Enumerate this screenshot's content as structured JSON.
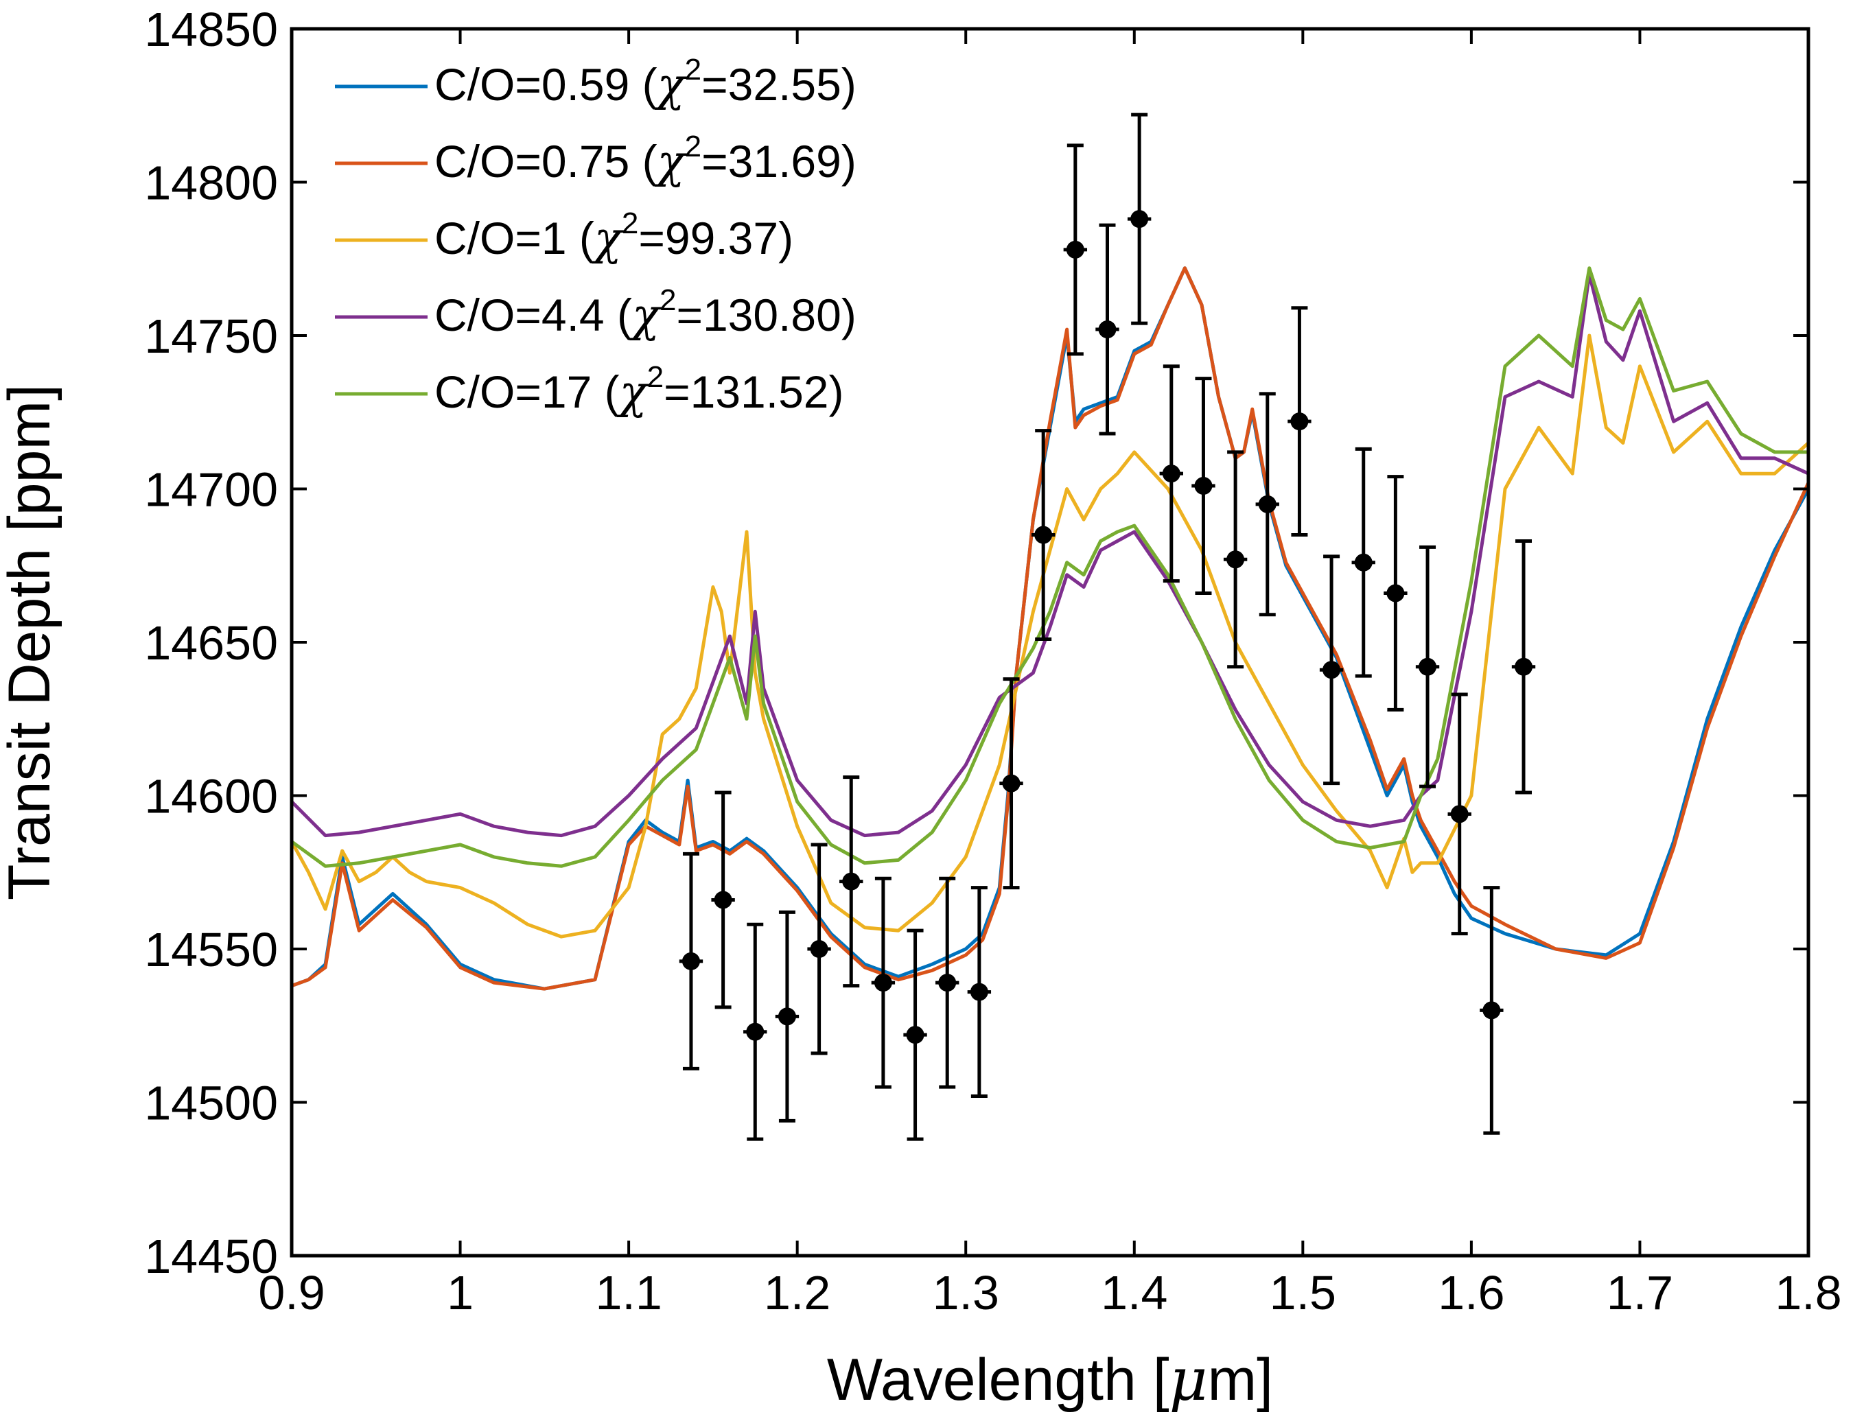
{
  "chart_data": {
    "type": "line",
    "title": "",
    "xlabel_text": "Wavelength [",
    "xlabel_mu": "μ",
    "xlabel_unit": "m]",
    "ylabel": "Transit Depth [ppm]",
    "xlim": [
      0.9,
      1.8
    ],
    "ylim": [
      14450,
      14850
    ],
    "xticks": [
      0.9,
      1,
      1.1,
      1.2,
      1.3,
      1.4,
      1.5,
      1.6,
      1.7,
      1.8
    ],
    "xtick_labels": [
      "0.9",
      "1",
      "1.1",
      "1.2",
      "1.3",
      "1.4",
      "1.5",
      "1.6",
      "1.7",
      "1.8"
    ],
    "yticks": [
      14450,
      14500,
      14550,
      14600,
      14650,
      14700,
      14750,
      14800,
      14850
    ],
    "ytick_labels": [
      "14450",
      "14500",
      "14550",
      "14600",
      "14650",
      "14700",
      "14750",
      "14800",
      "14850"
    ],
    "legend_position": "top-left",
    "series": [
      {
        "name": "C/O=0.59 (χ2=32.55)",
        "legend_prefix": "C/O=0.59 (",
        "chi_symbol": "χ",
        "chi_exponent": "2",
        "legend_suffix": "=32.55)",
        "color": "#0072BD",
        "x": [
          0.9,
          0.91,
          0.92,
          0.93,
          0.94,
          0.96,
          0.98,
          1.0,
          1.02,
          1.05,
          1.08,
          1.1,
          1.11,
          1.12,
          1.13,
          1.135,
          1.14,
          1.15,
          1.16,
          1.17,
          1.18,
          1.2,
          1.22,
          1.24,
          1.26,
          1.28,
          1.3,
          1.31,
          1.32,
          1.325,
          1.33,
          1.34,
          1.35,
          1.36,
          1.365,
          1.37,
          1.38,
          1.39,
          1.4,
          1.41,
          1.42,
          1.43,
          1.44,
          1.45,
          1.46,
          1.465,
          1.47,
          1.48,
          1.49,
          1.5,
          1.52,
          1.54,
          1.55,
          1.56,
          1.565,
          1.57,
          1.58,
          1.59,
          1.6,
          1.62,
          1.65,
          1.68,
          1.7,
          1.72,
          1.74,
          1.76,
          1.78,
          1.8
        ],
        "y": [
          14538,
          14540,
          14545,
          14580,
          14558,
          14568,
          14558,
          14545,
          14540,
          14537,
          14540,
          14585,
          14592,
          14588,
          14585,
          14605,
          14583,
          14585,
          14582,
          14586,
          14582,
          14570,
          14555,
          14545,
          14541,
          14545,
          14550,
          14555,
          14570,
          14600,
          14640,
          14690,
          14720,
          14750,
          14722,
          14726,
          14728,
          14730,
          14745,
          14748,
          14760,
          14772,
          14760,
          14730,
          14710,
          14712,
          14725,
          14695,
          14675,
          14665,
          14645,
          14615,
          14600,
          14610,
          14598,
          14590,
          14580,
          14568,
          14560,
          14555,
          14550,
          14548,
          14555,
          14585,
          14625,
          14655,
          14680,
          14700
        ]
      },
      {
        "name": "C/O=0.75 (χ2=31.69)",
        "legend_prefix": "C/O=0.75 (",
        "chi_symbol": "χ",
        "chi_exponent": "2",
        "legend_suffix": "=31.69)",
        "color": "#D95319",
        "x": [
          0.9,
          0.91,
          0.92,
          0.93,
          0.94,
          0.96,
          0.98,
          1.0,
          1.02,
          1.05,
          1.08,
          1.1,
          1.11,
          1.12,
          1.13,
          1.135,
          1.14,
          1.15,
          1.16,
          1.17,
          1.18,
          1.2,
          1.22,
          1.24,
          1.26,
          1.28,
          1.3,
          1.31,
          1.32,
          1.325,
          1.33,
          1.34,
          1.35,
          1.36,
          1.365,
          1.37,
          1.38,
          1.39,
          1.4,
          1.41,
          1.42,
          1.43,
          1.44,
          1.45,
          1.46,
          1.465,
          1.47,
          1.48,
          1.49,
          1.5,
          1.52,
          1.54,
          1.55,
          1.56,
          1.565,
          1.57,
          1.58,
          1.59,
          1.6,
          1.62,
          1.65,
          1.68,
          1.7,
          1.72,
          1.74,
          1.76,
          1.78,
          1.8
        ],
        "y": [
          14538,
          14540,
          14544,
          14578,
          14556,
          14566,
          14557,
          14544,
          14539,
          14537,
          14540,
          14584,
          14590,
          14587,
          14584,
          14603,
          14582,
          14584,
          14581,
          14585,
          14581,
          14569,
          14554,
          14544,
          14540,
          14543,
          14548,
          14553,
          14568,
          14598,
          14640,
          14690,
          14722,
          14752,
          14720,
          14724,
          14727,
          14729,
          14744,
          14747,
          14760,
          14772,
          14760,
          14730,
          14710,
          14712,
          14726,
          14696,
          14676,
          14666,
          14646,
          14618,
          14602,
          14612,
          14600,
          14592,
          14582,
          14572,
          14564,
          14558,
          14550,
          14547,
          14552,
          14583,
          14622,
          14652,
          14678,
          14702
        ]
      },
      {
        "name": "C/O=1 (χ2=99.37)",
        "legend_prefix": "C/O=1 (",
        "chi_symbol": "χ",
        "chi_exponent": "2",
        "legend_suffix": "=99.37)",
        "color": "#EDB120",
        "x": [
          0.9,
          0.91,
          0.92,
          0.93,
          0.94,
          0.95,
          0.96,
          0.97,
          0.98,
          1.0,
          1.02,
          1.04,
          1.06,
          1.08,
          1.1,
          1.11,
          1.12,
          1.13,
          1.14,
          1.15,
          1.155,
          1.16,
          1.17,
          1.175,
          1.18,
          1.2,
          1.22,
          1.24,
          1.26,
          1.28,
          1.3,
          1.32,
          1.34,
          1.35,
          1.36,
          1.37,
          1.38,
          1.39,
          1.4,
          1.42,
          1.44,
          1.46,
          1.48,
          1.5,
          1.52,
          1.54,
          1.55,
          1.56,
          1.565,
          1.57,
          1.58,
          1.6,
          1.62,
          1.64,
          1.66,
          1.67,
          1.68,
          1.69,
          1.7,
          1.72,
          1.74,
          1.76,
          1.78,
          1.8
        ],
        "y": [
          14585,
          14575,
          14563,
          14582,
          14572,
          14575,
          14580,
          14575,
          14572,
          14570,
          14565,
          14558,
          14554,
          14556,
          14570,
          14590,
          14620,
          14625,
          14635,
          14668,
          14660,
          14640,
          14686,
          14640,
          14625,
          14590,
          14565,
          14557,
          14556,
          14565,
          14580,
          14610,
          14660,
          14680,
          14700,
          14690,
          14700,
          14705,
          14712,
          14700,
          14680,
          14650,
          14630,
          14610,
          14595,
          14582,
          14570,
          14586,
          14575,
          14578,
          14578,
          14600,
          14700,
          14720,
          14705,
          14750,
          14720,
          14715,
          14740,
          14712,
          14722,
          14705,
          14705,
          14715
        ]
      },
      {
        "name": "C/O=4.4 (χ2=130.80)",
        "legend_prefix": "C/O=4.4 (",
        "chi_symbol": "χ",
        "chi_exponent": "2",
        "legend_suffix": "=130.80)",
        "color": "#7E2F8E",
        "x": [
          0.9,
          0.92,
          0.94,
          0.96,
          0.98,
          1.0,
          1.02,
          1.04,
          1.06,
          1.08,
          1.1,
          1.12,
          1.14,
          1.16,
          1.17,
          1.175,
          1.18,
          1.2,
          1.22,
          1.24,
          1.26,
          1.28,
          1.3,
          1.32,
          1.34,
          1.35,
          1.36,
          1.37,
          1.38,
          1.39,
          1.4,
          1.42,
          1.44,
          1.46,
          1.48,
          1.5,
          1.52,
          1.54,
          1.56,
          1.57,
          1.58,
          1.6,
          1.62,
          1.64,
          1.66,
          1.67,
          1.68,
          1.69,
          1.7,
          1.72,
          1.74,
          1.76,
          1.78,
          1.8
        ],
        "y": [
          14598,
          14587,
          14588,
          14590,
          14592,
          14594,
          14590,
          14588,
          14587,
          14590,
          14600,
          14612,
          14622,
          14652,
          14630,
          14660,
          14635,
          14605,
          14592,
          14587,
          14588,
          14595,
          14610,
          14632,
          14640,
          14655,
          14672,
          14668,
          14680,
          14683,
          14686,
          14670,
          14650,
          14628,
          14610,
          14598,
          14592,
          14590,
          14592,
          14600,
          14605,
          14660,
          14730,
          14735,
          14730,
          14770,
          14748,
          14742,
          14758,
          14722,
          14728,
          14710,
          14710,
          14705
        ]
      },
      {
        "name": "C/O=17 (χ2=131.52)",
        "legend_prefix": "C/O=17 (",
        "chi_symbol": "χ",
        "chi_exponent": "2",
        "legend_suffix": "=131.52)",
        "color": "#77AC30",
        "x": [
          0.9,
          0.92,
          0.94,
          0.96,
          0.98,
          1.0,
          1.02,
          1.04,
          1.06,
          1.08,
          1.1,
          1.12,
          1.14,
          1.16,
          1.17,
          1.175,
          1.18,
          1.2,
          1.22,
          1.24,
          1.26,
          1.28,
          1.3,
          1.32,
          1.34,
          1.35,
          1.36,
          1.37,
          1.38,
          1.39,
          1.4,
          1.42,
          1.44,
          1.46,
          1.48,
          1.5,
          1.52,
          1.54,
          1.56,
          1.57,
          1.58,
          1.6,
          1.62,
          1.64,
          1.66,
          1.67,
          1.68,
          1.69,
          1.7,
          1.72,
          1.74,
          1.76,
          1.78,
          1.8
        ],
        "y": [
          14585,
          14577,
          14578,
          14580,
          14582,
          14584,
          14580,
          14578,
          14577,
          14580,
          14592,
          14605,
          14615,
          14645,
          14625,
          14652,
          14630,
          14598,
          14584,
          14578,
          14579,
          14588,
          14605,
          14630,
          14648,
          14660,
          14676,
          14672,
          14683,
          14686,
          14688,
          14672,
          14650,
          14625,
          14605,
          14592,
          14585,
          14583,
          14585,
          14600,
          14612,
          14670,
          14740,
          14750,
          14740,
          14772,
          14755,
          14752,
          14762,
          14732,
          14735,
          14718,
          14712,
          14712
        ]
      }
    ],
    "observations": {
      "name": "data",
      "color": "#000000",
      "x": [
        1.137,
        1.156,
        1.175,
        1.194,
        1.213,
        1.232,
        1.251,
        1.27,
        1.289,
        1.308,
        1.327,
        1.346,
        1.365,
        1.384,
        1.403,
        1.422,
        1.441,
        1.46,
        1.479,
        1.498,
        1.517,
        1.536,
        1.555,
        1.574,
        1.593,
        1.612,
        1.631
      ],
      "y": [
        14546,
        14566,
        14523,
        14528,
        14550,
        14572,
        14539,
        14522,
        14539,
        14536,
        14604,
        14685,
        14778,
        14752,
        14788,
        14705,
        14701,
        14677,
        14695,
        14722,
        14641,
        14676,
        14666,
        14642,
        14594,
        14530,
        14642
      ],
      "err": [
        35,
        35,
        35,
        34,
        34,
        34,
        34,
        34,
        34,
        34,
        34,
        34,
        34,
        34,
        34,
        35,
        35,
        35,
        36,
        37,
        37,
        37,
        38,
        39,
        39,
        40,
        41
      ],
      "xerr": [
        0.007,
        0.007,
        0.007,
        0.007,
        0.007,
        0.007,
        0.007,
        0.007,
        0.007,
        0.007,
        0.007,
        0.007,
        0.007,
        0.007,
        0.007,
        0.007,
        0.007,
        0.007,
        0.007,
        0.007,
        0.007,
        0.007,
        0.007,
        0.007,
        0.007,
        0.007,
        0.007
      ]
    }
  }
}
